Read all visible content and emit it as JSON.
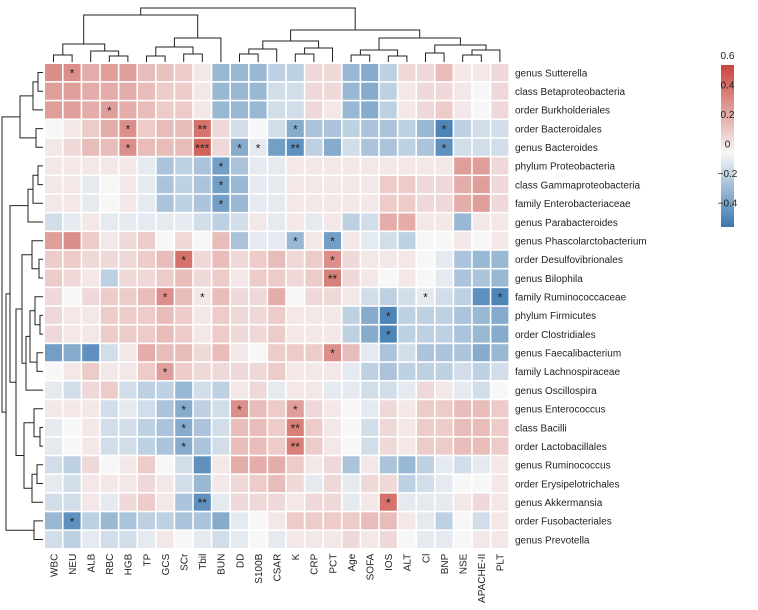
{
  "chart_data": {
    "type": "heatmap",
    "title": "",
    "rows": [
      "genus Sutterella",
      "class Betaproteobacteria",
      "order Burkholderiales",
      "order Bacteroidales",
      "genus Bacteroides",
      "phylum Proteobacteria",
      "class Gammaproteobacteria",
      "family Enterobacteriaceae",
      "genus Parabacteroides",
      "genus Phascolarctobacterium",
      "order Desulfovibrionales",
      "genus Bilophila",
      "family Ruminococcaceae",
      "phylum Firmicutes",
      "order Clostridiales",
      "genus Faecalibacterium",
      "family Lachnospiraceae",
      "genus Oscillospira",
      "genus Enterococcus",
      "class Bacilli",
      "order Lactobacillales",
      "genus Ruminococcus",
      "order Erysipelotrichales",
      "genus Akkermansia",
      "order Fusobacteriales",
      "genus Prevotella"
    ],
    "columns": [
      "WBC",
      "NEU",
      "ALB",
      "RBC",
      "HGB",
      "TP",
      "GCS",
      "SCr",
      "Tbil",
      "BUN",
      "DD",
      "S100B",
      "CSAR",
      "K",
      "CRP",
      "PCT",
      "Age",
      "SOFA",
      "IOS",
      "ALT",
      "Cl",
      "BNP",
      "NSE",
      "APACHE-II",
      "PLT"
    ],
    "values": [
      [
        0.35,
        0.35,
        0.25,
        0.3,
        0.3,
        0.2,
        0.18,
        0.15,
        0.05,
        -0.25,
        -0.25,
        -0.25,
        -0.15,
        -0.15,
        0.1,
        0.1,
        -0.25,
        -0.3,
        -0.15,
        0.1,
        0.1,
        0.2,
        0.05,
        0.05,
        0.1
      ],
      [
        0.3,
        0.3,
        0.25,
        0.25,
        0.25,
        0.2,
        0.15,
        0.15,
        0.05,
        -0.25,
        -0.25,
        -0.25,
        -0.1,
        -0.1,
        0.1,
        0.1,
        -0.25,
        -0.3,
        -0.15,
        0.05,
        0.1,
        0.1,
        0.05,
        0.0,
        0.1
      ],
      [
        0.3,
        0.3,
        0.25,
        0.3,
        0.25,
        0.2,
        0.15,
        0.15,
        0.05,
        -0.25,
        -0.25,
        -0.25,
        -0.1,
        -0.1,
        0.1,
        0.05,
        -0.25,
        -0.3,
        -0.15,
        0.05,
        0.1,
        0.15,
        0.05,
        0.0,
        0.1
      ],
      [
        0.0,
        0.05,
        0.15,
        0.25,
        0.35,
        0.15,
        0.2,
        0.2,
        0.45,
        0.1,
        -0.1,
        0.0,
        -0.1,
        -0.3,
        -0.2,
        -0.2,
        -0.15,
        -0.2,
        -0.2,
        -0.15,
        -0.25,
        -0.45,
        -0.15,
        -0.1,
        -0.1
      ],
      [
        0.05,
        0.1,
        0.2,
        0.2,
        0.35,
        0.2,
        0.2,
        0.2,
        0.5,
        0.1,
        -0.3,
        -0.05,
        -0.35,
        -0.4,
        -0.15,
        -0.3,
        -0.1,
        -0.2,
        -0.2,
        -0.15,
        -0.2,
        -0.4,
        -0.1,
        -0.1,
        -0.1
      ],
      [
        0.05,
        0.05,
        0.05,
        0.05,
        0.05,
        -0.05,
        -0.2,
        -0.15,
        -0.2,
        -0.35,
        -0.2,
        -0.05,
        -0.05,
        0.05,
        0.05,
        0.05,
        0.05,
        0.05,
        0.05,
        0.05,
        0.05,
        0.05,
        0.3,
        0.3,
        0.1
      ],
      [
        0.05,
        0.05,
        -0.05,
        0.0,
        0.05,
        -0.05,
        -0.2,
        -0.15,
        -0.2,
        -0.35,
        -0.25,
        -0.05,
        -0.05,
        0.05,
        0.05,
        0.05,
        0.05,
        0.05,
        0.15,
        0.15,
        0.1,
        0.1,
        0.25,
        0.3,
        0.1
      ],
      [
        0.05,
        0.05,
        -0.05,
        0.0,
        0.05,
        -0.05,
        -0.2,
        -0.15,
        -0.2,
        -0.35,
        -0.25,
        -0.05,
        -0.05,
        0.05,
        0.05,
        0.05,
        0.05,
        0.05,
        0.15,
        0.15,
        0.1,
        0.1,
        0.25,
        0.3,
        0.1
      ],
      [
        -0.1,
        -0.05,
        0.05,
        -0.05,
        -0.05,
        -0.05,
        -0.05,
        -0.05,
        -0.1,
        -0.15,
        -0.1,
        0.05,
        -0.05,
        0.05,
        -0.05,
        0.05,
        -0.15,
        -0.1,
        0.25,
        0.25,
        0.05,
        0.05,
        -0.25,
        0.05,
        0.05
      ],
      [
        0.3,
        0.35,
        0.15,
        0.05,
        0.1,
        0.15,
        0.0,
        0.1,
        0.0,
        0.2,
        -0.2,
        -0.05,
        -0.05,
        -0.25,
        0.05,
        -0.35,
        0.05,
        -0.05,
        -0.1,
        -0.15,
        0.0,
        0.0,
        0.05,
        0.0,
        0.05
      ],
      [
        0.15,
        0.15,
        0.1,
        0.1,
        0.1,
        0.15,
        0.2,
        0.45,
        0.1,
        0.2,
        0.1,
        0.15,
        0.2,
        0.1,
        0.15,
        0.35,
        0.1,
        0.05,
        0.05,
        0.05,
        0.0,
        -0.05,
        -0.2,
        -0.25,
        -0.25
      ],
      [
        0.15,
        0.1,
        0.05,
        -0.15,
        0.1,
        0.1,
        0.15,
        0.2,
        0.1,
        0.15,
        0.05,
        0.15,
        0.15,
        0.1,
        0.15,
        0.4,
        0.1,
        0.05,
        0.0,
        0.05,
        0.0,
        -0.05,
        -0.2,
        -0.2,
        -0.25
      ],
      [
        0.1,
        0.0,
        0.1,
        0.15,
        0.15,
        0.2,
        0.35,
        0.2,
        0.05,
        0.2,
        0.1,
        0.1,
        0.25,
        0.0,
        0.1,
        0.1,
        0.05,
        -0.1,
        -0.15,
        -0.1,
        -0.05,
        -0.1,
        -0.15,
        -0.4,
        -0.45
      ],
      [
        0.1,
        0.05,
        0.05,
        0.15,
        0.15,
        0.15,
        0.2,
        0.15,
        0.05,
        0.15,
        0.1,
        0.1,
        0.15,
        0.05,
        0.05,
        0.05,
        -0.15,
        -0.3,
        -0.45,
        -0.15,
        -0.15,
        -0.15,
        -0.2,
        -0.25,
        -0.3
      ],
      [
        0.1,
        0.05,
        0.05,
        0.15,
        0.15,
        0.15,
        0.2,
        0.15,
        0.05,
        0.15,
        0.1,
        0.1,
        0.15,
        0.05,
        0.05,
        0.05,
        -0.15,
        -0.3,
        -0.45,
        -0.15,
        -0.15,
        -0.15,
        -0.2,
        -0.25,
        -0.3
      ],
      [
        -0.35,
        -0.3,
        -0.4,
        -0.1,
        0.05,
        0.25,
        0.2,
        0.2,
        0.1,
        0.2,
        0.05,
        0.0,
        0.15,
        0.15,
        0.15,
        0.35,
        0.2,
        -0.05,
        -0.2,
        -0.1,
        -0.2,
        -0.2,
        -0.2,
        -0.3,
        -0.25
      ],
      [
        0.0,
        0.05,
        0.15,
        0.05,
        0.05,
        0.15,
        0.3,
        0.15,
        0.1,
        0.1,
        0.1,
        0.1,
        0.15,
        0.05,
        0.05,
        0.05,
        -0.05,
        -0.15,
        -0.2,
        -0.15,
        -0.15,
        -0.15,
        -0.1,
        -0.15,
        -0.1
      ],
      [
        -0.05,
        -0.1,
        0.1,
        0.15,
        -0.1,
        -0.15,
        -0.15,
        -0.25,
        -0.1,
        -0.15,
        0.05,
        0.1,
        -0.05,
        0.05,
        0.05,
        -0.05,
        -0.05,
        -0.1,
        -0.1,
        -0.05,
        0.1,
        0.05,
        -0.05,
        -0.1,
        0.0
      ],
      [
        0.05,
        0.05,
        0.05,
        -0.1,
        -0.05,
        -0.1,
        -0.2,
        -0.3,
        -0.15,
        -0.1,
        0.35,
        0.2,
        0.15,
        0.3,
        0.1,
        0.05,
        0.0,
        -0.05,
        0.1,
        0.05,
        0.15,
        0.15,
        0.2,
        0.2,
        0.15
      ],
      [
        -0.05,
        0.0,
        0.05,
        -0.1,
        -0.1,
        -0.15,
        -0.2,
        -0.3,
        -0.2,
        -0.1,
        0.2,
        0.2,
        0.15,
        0.4,
        0.15,
        0.05,
        0.0,
        -0.1,
        0.1,
        0.05,
        0.15,
        0.15,
        0.2,
        0.2,
        0.15
      ],
      [
        -0.05,
        0.0,
        0.05,
        -0.1,
        -0.1,
        -0.15,
        -0.2,
        -0.3,
        -0.2,
        -0.1,
        0.2,
        0.2,
        0.15,
        0.4,
        0.15,
        0.05,
        0.0,
        -0.1,
        0.1,
        0.05,
        0.15,
        0.15,
        0.2,
        0.2,
        0.15
      ],
      [
        -0.1,
        -0.15,
        0.1,
        0.0,
        0.05,
        0.15,
        0.0,
        -0.1,
        -0.4,
        0.05,
        0.25,
        0.25,
        0.25,
        0.15,
        0.05,
        0.1,
        -0.2,
        0.05,
        -0.2,
        -0.25,
        -0.15,
        -0.05,
        -0.1,
        -0.05,
        0.05
      ],
      [
        -0.05,
        -0.1,
        0.05,
        0.05,
        0.05,
        0.1,
        0.05,
        -0.1,
        -0.25,
        0.05,
        0.1,
        0.15,
        0.2,
        0.1,
        -0.05,
        0.1,
        -0.05,
        0.1,
        0.1,
        -0.15,
        -0.1,
        -0.05,
        0.0,
        0.0,
        0.05
      ],
      [
        -0.1,
        -0.1,
        0.05,
        -0.05,
        0.1,
        0.15,
        0.05,
        -0.2,
        -0.4,
        -0.05,
        0.1,
        0.1,
        0.1,
        0.05,
        0.1,
        0.1,
        -0.05,
        0.05,
        0.45,
        -0.05,
        -0.05,
        -0.05,
        0.05,
        0.1,
        0.05
      ],
      [
        -0.25,
        -0.4,
        -0.15,
        -0.25,
        -0.2,
        -0.15,
        -0.15,
        -0.2,
        -0.2,
        -0.3,
        -0.05,
        0.0,
        0.05,
        0.15,
        0.15,
        0.15,
        0.15,
        0.2,
        0.2,
        0.05,
        -0.05,
        -0.15,
        0.0,
        -0.1,
        0.05
      ],
      [
        -0.1,
        -0.15,
        -0.05,
        -0.1,
        -0.1,
        -0.05,
        0.05,
        0.0,
        -0.05,
        -0.1,
        -0.05,
        0.0,
        -0.05,
        0.05,
        0.05,
        0.05,
        0.1,
        0.05,
        0.1,
        0.0,
        -0.05,
        -0.05,
        0.0,
        0.05,
        0.05
      ]
    ],
    "significance": [
      {
        "row": 0,
        "col": 1,
        "label": "*"
      },
      {
        "row": 2,
        "col": 3,
        "label": "*"
      },
      {
        "row": 3,
        "col": 4,
        "label": "*"
      },
      {
        "row": 3,
        "col": 8,
        "label": "**"
      },
      {
        "row": 3,
        "col": 13,
        "label": "*"
      },
      {
        "row": 3,
        "col": 21,
        "label": "*"
      },
      {
        "row": 4,
        "col": 4,
        "label": "*"
      },
      {
        "row": 4,
        "col": 8,
        "label": "***"
      },
      {
        "row": 4,
        "col": 10,
        "label": "*"
      },
      {
        "row": 4,
        "col": 11,
        "label": "*"
      },
      {
        "row": 4,
        "col": 13,
        "label": "**"
      },
      {
        "row": 4,
        "col": 21,
        "label": "*"
      },
      {
        "row": 5,
        "col": 9,
        "label": "*"
      },
      {
        "row": 6,
        "col": 9,
        "label": "*"
      },
      {
        "row": 7,
        "col": 9,
        "label": "*"
      },
      {
        "row": 9,
        "col": 13,
        "label": "*"
      },
      {
        "row": 9,
        "col": 15,
        "label": "*"
      },
      {
        "row": 10,
        "col": 7,
        "label": "*"
      },
      {
        "row": 10,
        "col": 15,
        "label": "*"
      },
      {
        "row": 11,
        "col": 15,
        "label": "**"
      },
      {
        "row": 12,
        "col": 6,
        "label": "*"
      },
      {
        "row": 12,
        "col": 8,
        "label": "*"
      },
      {
        "row": 12,
        "col": 20,
        "label": "*"
      },
      {
        "row": 12,
        "col": 24,
        "label": "*"
      },
      {
        "row": 13,
        "col": 18,
        "label": "*"
      },
      {
        "row": 14,
        "col": 18,
        "label": "*"
      },
      {
        "row": 15,
        "col": 15,
        "label": "*"
      },
      {
        "row": 16,
        "col": 6,
        "label": "*"
      },
      {
        "row": 18,
        "col": 7,
        "label": "*"
      },
      {
        "row": 18,
        "col": 10,
        "label": "*"
      },
      {
        "row": 18,
        "col": 13,
        "label": "*"
      },
      {
        "row": 19,
        "col": 7,
        "label": "*"
      },
      {
        "row": 19,
        "col": 13,
        "label": "**"
      },
      {
        "row": 20,
        "col": 7,
        "label": "*"
      },
      {
        "row": 20,
        "col": 13,
        "label": "**"
      },
      {
        "row": 23,
        "col": 8,
        "label": "**"
      },
      {
        "row": 23,
        "col": 18,
        "label": "*"
      },
      {
        "row": 24,
        "col": 1,
        "label": "*"
      }
    ],
    "colorbar": {
      "min": -0.5,
      "max": 0.6,
      "ticks": [
        0.6,
        0.4,
        0.2,
        0,
        -0.2,
        -0.4
      ],
      "tick_labels": [
        "0.6",
        "0.4",
        "0.2",
        "0",
        "−0.2",
        "−0.4"
      ],
      "low_color": "#3a78b0",
      "mid_color": "#f7f7f7",
      "high_color": "#c9453c"
    }
  }
}
